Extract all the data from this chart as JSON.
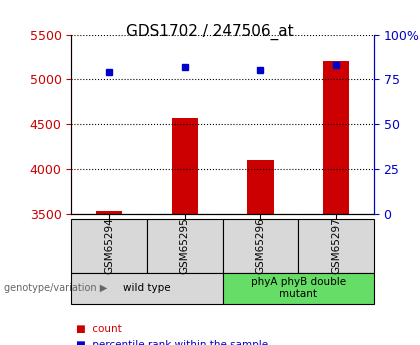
{
  "title": "GDS1702 / 247506_at",
  "samples": [
    "GSM65294",
    "GSM65295",
    "GSM65296",
    "GSM65297"
  ],
  "counts": [
    3530,
    4570,
    4100,
    5200
  ],
  "percentiles": [
    79,
    82,
    80,
    83
  ],
  "ylim_left": [
    3500,
    5500
  ],
  "ylim_right": [
    0,
    100
  ],
  "yticks_left": [
    3500,
    4000,
    4500,
    5000,
    5500
  ],
  "yticks_right": [
    0,
    25,
    50,
    75,
    100
  ],
  "yticklabels_right": [
    "0",
    "25",
    "50",
    "75",
    "100%"
  ],
  "bar_color": "#cc0000",
  "marker_color": "#0000cc",
  "bar_width": 0.35,
  "groups": [
    {
      "label": "wild type",
      "indices": [
        0,
        1
      ],
      "color": "#d8d8d8"
    },
    {
      "label": "phyA phyB double\nmutant",
      "indices": [
        2,
        3
      ],
      "color": "#66dd66"
    }
  ],
  "genotype_label": "genotype/variation",
  "legend_count": "count",
  "legend_percentile": "percentile rank within the sample",
  "title_fontsize": 11,
  "tick_fontsize": 9,
  "axis_color_left": "#cc0000",
  "axis_color_right": "#0000cc"
}
